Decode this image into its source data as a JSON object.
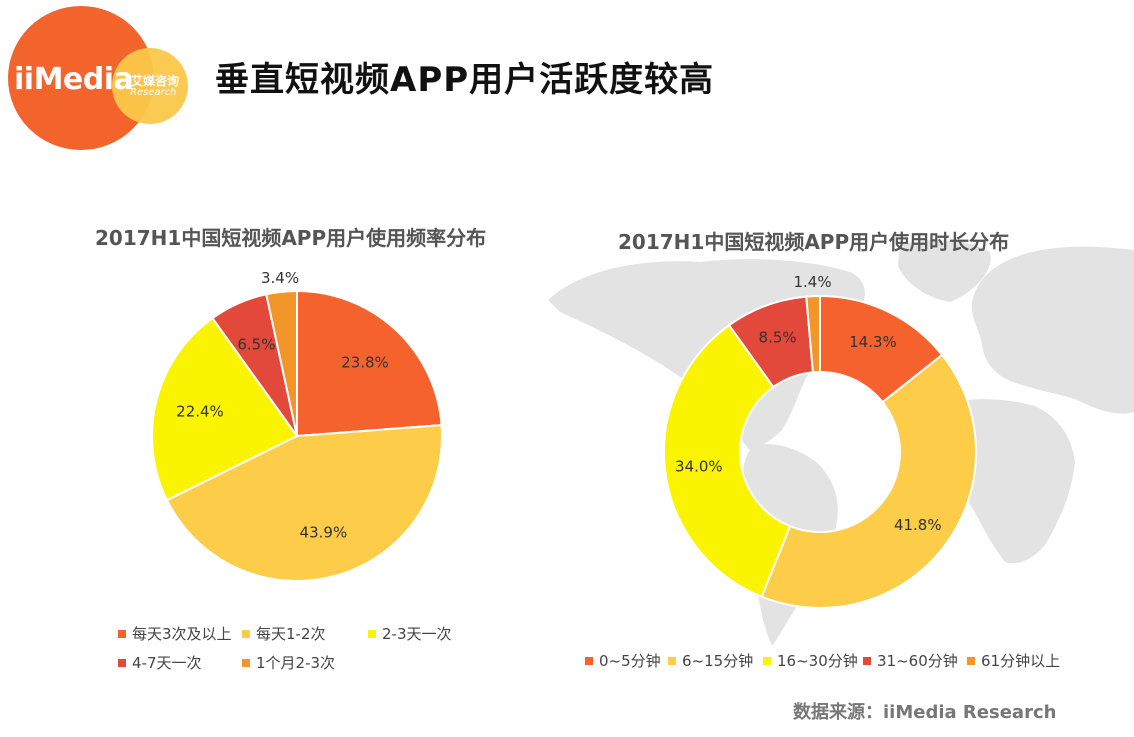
{
  "header": {
    "title": "垂直短视频APP用户活跃度较高",
    "logo": {
      "main": "iiMedia",
      "cn": "艾媒咨询",
      "en": "Research"
    }
  },
  "colors": {
    "orange_red": "#f5622e",
    "light_orange": "#fdcd4a",
    "yellow": "#fbf400",
    "red": "#e3493a",
    "orange": "#f3962a",
    "map_gray": "#e3e3e3",
    "background": "#ffffff"
  },
  "chart_data": [
    {
      "type": "pie",
      "title": "2017H1中国短视频APP用户使用频率分布",
      "categories": [
        "每天3次及以上",
        "每天1-2次",
        "2-3天一次",
        "4-7天一次",
        "1个月2-3次"
      ],
      "values": [
        23.8,
        43.9,
        22.4,
        6.5,
        3.4
      ],
      "value_labels": [
        "23.8%",
        "43.9%",
        "22.4%",
        "6.5%",
        "3.4%"
      ],
      "colors": [
        "#f5622e",
        "#fdcd4a",
        "#fbf400",
        "#e3493a",
        "#f3962a"
      ],
      "legend_position": "bottom"
    },
    {
      "type": "pie",
      "subtype": "donut",
      "title": "2017H1中国短视频APP用户使用时长分布",
      "categories": [
        "0~5分钟",
        "6~15分钟",
        "16~30分钟",
        "31~60分钟",
        "61分钟以上"
      ],
      "values": [
        14.3,
        41.8,
        34.0,
        8.5,
        1.4
      ],
      "value_labels": [
        "14.3%",
        "41.8%",
        "34.0%",
        "8.5%",
        "1.4%"
      ],
      "colors": [
        "#f5622e",
        "#fdcd4a",
        "#fbf400",
        "#e3493a",
        "#f3962a"
      ],
      "legend_position": "bottom"
    }
  ],
  "footer": {
    "source": "数据来源：iiMedia Research"
  }
}
